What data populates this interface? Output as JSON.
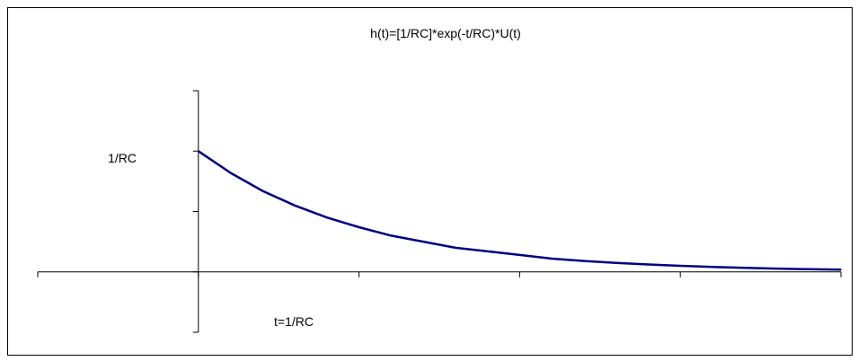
{
  "chart_data": {
    "type": "line",
    "title": "h(t)=[1/RC]*exp(-t/RC)*U(t)",
    "xlabel": "",
    "ylabel": "",
    "xlim": [
      -1,
      4
    ],
    "ylim": [
      -0.5,
      1.5
    ],
    "y_ticks": [
      -0.5,
      0,
      0.5,
      1,
      1.5
    ],
    "x_ticks": [
      -1,
      0,
      1,
      2,
      3,
      4
    ],
    "tick_labels": {
      "y_one": "1/RC",
      "x_one": "t=1/RC"
    },
    "grid": false,
    "legend": "none",
    "line_color": "#000080",
    "series": [
      {
        "x": [
          0,
          0.2,
          0.4,
          0.6,
          0.8,
          1.0,
          1.2,
          1.4,
          1.6,
          1.8,
          2.0,
          2.2,
          2.4,
          2.6,
          2.8,
          3.0,
          3.2,
          3.4,
          3.6,
          3.8,
          4.0
        ],
        "values": [
          1.0,
          0.82,
          0.67,
          0.55,
          0.45,
          0.37,
          0.3,
          0.25,
          0.2,
          0.17,
          0.14,
          0.11,
          0.09,
          0.074,
          0.061,
          0.05,
          0.041,
          0.033,
          0.027,
          0.022,
          0.018
        ]
      }
    ]
  }
}
